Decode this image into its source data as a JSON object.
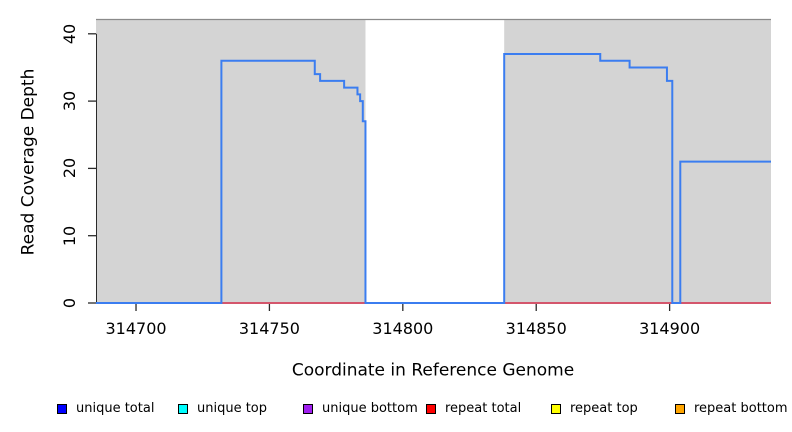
{
  "figure": {
    "background": "#ffffff"
  },
  "chart_data": {
    "type": "line",
    "subtype": "step",
    "title": "",
    "xlabel": "Coordinate in Reference Genome",
    "ylabel": "Read Coverage Depth",
    "xlim": [
      314685,
      314938
    ],
    "ylim": [
      0,
      42.2
    ],
    "x_ticks": [
      314700,
      314750,
      314800,
      314850,
      314900
    ],
    "y_ticks": [
      0,
      10,
      20,
      30,
      40
    ],
    "grid": false,
    "plot_background": "#ffffff",
    "plot_top_border_color": "#8a8a8a",
    "axis_color": "#2a2a2a",
    "background_regions": [
      {
        "x0": 314685,
        "x1": 314786,
        "color": "#d4d4d4"
      },
      {
        "x0": 314838,
        "x1": 314938,
        "color": "#d4d4d4"
      }
    ],
    "series": [
      {
        "name": "repeat total",
        "draw_color": "#d4566c",
        "line_width": 2,
        "steps": [
          {
            "x": 314685,
            "v": 0
          }
        ]
      },
      {
        "name": "unique total",
        "draw_color": "#3b7df0",
        "line_width": 2,
        "steps": [
          {
            "x": 314685,
            "v": 0
          },
          {
            "x": 314732,
            "v": 36
          },
          {
            "x": 314767,
            "v": 34
          },
          {
            "x": 314769,
            "v": 33
          },
          {
            "x": 314778,
            "v": 32
          },
          {
            "x": 314783,
            "v": 31
          },
          {
            "x": 314784,
            "v": 30
          },
          {
            "x": 314785,
            "v": 27
          },
          {
            "x": 314786,
            "v": 0
          },
          {
            "x": 314838,
            "v": 37
          },
          {
            "x": 314874,
            "v": 36
          },
          {
            "x": 314885,
            "v": 35
          },
          {
            "x": 314899,
            "v": 33
          },
          {
            "x": 314901,
            "v": 0
          },
          {
            "x": 314904,
            "v": 21
          }
        ]
      }
    ],
    "legend": {
      "position": "bottom",
      "entries": [
        {
          "label": "unique total",
          "color": "#0000ff"
        },
        {
          "label": "unique top",
          "color": "#00ffff"
        },
        {
          "label": "unique bottom",
          "color": "#a020f0"
        },
        {
          "label": "repeat total",
          "color": "#ff0000"
        },
        {
          "label": "repeat top",
          "color": "#ffff00"
        },
        {
          "label": "repeat bottom",
          "color": "#ffa500"
        }
      ]
    }
  }
}
